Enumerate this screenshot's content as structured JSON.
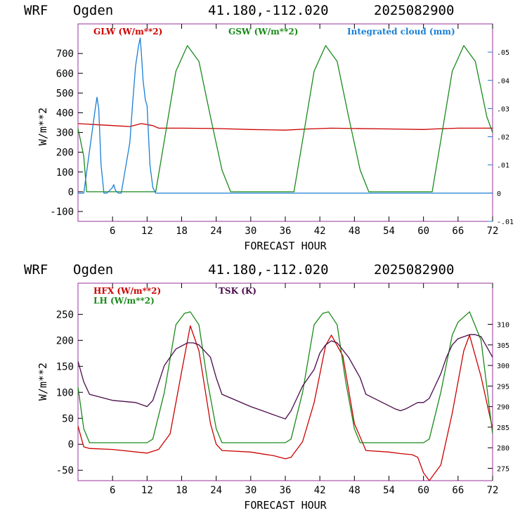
{
  "colors": {
    "red": "#cc0000",
    "green": "#1a8a1a",
    "blue": "#1a7fd4",
    "purple": "#4a0a4a",
    "frame": "#993399"
  },
  "chart_data": [
    {
      "type": "line",
      "header": {
        "model": "WRF",
        "station": "Ogden",
        "coords": "41.180,-112.020",
        "run": "2025082900"
      },
      "xlabel": "FORECAST HOUR",
      "ylabel": "W/m**2",
      "xlim": [
        0,
        72
      ],
      "ylim": [
        -150,
        850
      ],
      "y2lim": [
        -0.01,
        0.06
      ],
      "x_ticks": [
        6,
        12,
        18,
        24,
        30,
        36,
        42,
        48,
        54,
        60,
        66,
        72
      ],
      "x_tick_labels": [
        "6",
        "12",
        "18",
        "24",
        "30",
        "36",
        "42",
        "48",
        "54",
        "60",
        "66",
        "72"
      ],
      "y_ticks": [
        -100,
        0,
        100,
        200,
        300,
        400,
        500,
        600,
        700
      ],
      "y_tick_labels": [
        "-100",
        "0",
        "100",
        "200",
        "300",
        "400",
        "500",
        "600",
        "700"
      ],
      "y2_ticks": [
        -0.01,
        0,
        0.01,
        0.02,
        0.03,
        0.04,
        0.05
      ],
      "y2_tick_labels": [
        "-.01",
        "0",
        ".01",
        ".02",
        ".03",
        ".04",
        ".05"
      ],
      "series": [
        {
          "name": "GLW (W/m**2)",
          "axis": "left",
          "color": "#cc0000",
          "x": [
            0,
            3,
            6,
            9,
            11,
            13,
            14,
            18,
            24,
            30,
            36,
            40,
            44,
            48,
            54,
            60,
            62,
            66,
            72
          ],
          "y": [
            345,
            340,
            335,
            330,
            345,
            335,
            322,
            322,
            320,
            315,
            312,
            318,
            322,
            320,
            318,
            315,
            318,
            322,
            322
          ]
        },
        {
          "name": "GSW (W/m**2)",
          "axis": "left",
          "color": "#1a8a1a",
          "x": [
            0,
            1,
            1.5,
            13.5,
            15,
            17,
            19,
            21,
            23,
            25,
            26.5,
            37.5,
            39,
            41,
            43,
            45,
            47,
            49,
            50.5,
            61.5,
            63,
            65,
            67,
            69,
            71,
            72
          ],
          "y": [
            320,
            180,
            0,
            0,
            260,
            610,
            740,
            660,
            380,
            110,
            0,
            0,
            260,
            610,
            740,
            660,
            380,
            110,
            0,
            0,
            260,
            610,
            740,
            660,
            380,
            300
          ]
        },
        {
          "name": "Integrated cloud (mm)",
          "axis": "right",
          "color": "#1a7fd4",
          "x": [
            0,
            1,
            2,
            3,
            3.3,
            3.6,
            4,
            4.5,
            5,
            6,
            6.2,
            6.5,
            7,
            7.5,
            8,
            9,
            9.5,
            10,
            10.5,
            10.8,
            11,
            11.3,
            11.7,
            12,
            12.5,
            13,
            13.5,
            14,
            72
          ],
          "y": [
            0,
            0,
            0.015,
            0.03,
            0.034,
            0.03,
            0.01,
            0,
            0,
            0.002,
            0.003,
            0.001,
            0,
            0,
            0.006,
            0.018,
            0.032,
            0.045,
            0.052,
            0.055,
            0.05,
            0.04,
            0.033,
            0.031,
            0.01,
            0.002,
            0,
            0,
            0
          ]
        }
      ]
    },
    {
      "type": "line",
      "header": {
        "model": "WRF",
        "station": "Ogden",
        "coords": "41.180,-112.020",
        "run": "2025082900"
      },
      "xlabel": "FORECAST HOUR",
      "ylabel": "W/m**2",
      "xlim": [
        0,
        72
      ],
      "ylim": [
        -70,
        310
      ],
      "y2lim": [
        272,
        320
      ],
      "x_ticks": [
        6,
        12,
        18,
        24,
        30,
        36,
        42,
        48,
        54,
        60,
        66,
        72
      ],
      "x_tick_labels": [
        "6",
        "12",
        "18",
        "24",
        "30",
        "36",
        "42",
        "48",
        "54",
        "60",
        "66",
        "72"
      ],
      "y_ticks": [
        -50,
        0,
        50,
        100,
        150,
        200,
        250
      ],
      "y_tick_labels": [
        "-50",
        "0",
        "50",
        "100",
        "150",
        "200",
        "250"
      ],
      "y2_ticks": [
        275,
        280,
        285,
        290,
        295,
        300,
        305,
        310
      ],
      "y2_tick_labels": [
        "275",
        "280",
        "285",
        "290",
        "295",
        "300",
        "305",
        "310"
      ],
      "series": [
        {
          "name": "HFX (W/m**2)",
          "axis": "left",
          "color": "#cc0000",
          "x": [
            0,
            1,
            2,
            6,
            12,
            14,
            16,
            18,
            19.5,
            21,
            23,
            24,
            25,
            30,
            34,
            36,
            37,
            39,
            41,
            43,
            44,
            46,
            48,
            50,
            54,
            56,
            58,
            59,
            60,
            61,
            63,
            65,
            67,
            68,
            70,
            72
          ],
          "y": [
            35,
            -5,
            -8,
            -10,
            -17,
            -10,
            20,
            140,
            228,
            180,
            40,
            0,
            -12,
            -15,
            -22,
            -28,
            -25,
            5,
            80,
            190,
            210,
            170,
            40,
            -12,
            -15,
            -18,
            -20,
            -25,
            -55,
            -70,
            -40,
            60,
            180,
            210,
            130,
            30
          ]
        },
        {
          "name": "LH  (W/m**2)",
          "axis": "left",
          "color": "#1a8a1a",
          "x": [
            0,
            1,
            2,
            12,
            13,
            15,
            17,
            18.5,
            19.5,
            21,
            22.5,
            24,
            25,
            36,
            37,
            39,
            41,
            42.5,
            43.5,
            45,
            46.5,
            48,
            49,
            60,
            61,
            63,
            65,
            66,
            68,
            70,
            72
          ],
          "y": [
            110,
            30,
            3,
            3,
            10,
            100,
            230,
            252,
            255,
            230,
            120,
            30,
            3,
            3,
            10,
            100,
            230,
            252,
            255,
            230,
            120,
            30,
            3,
            3,
            10,
            100,
            210,
            235,
            255,
            200,
            20
          ]
        },
        {
          "name": "TSK (K)",
          "axis": "right",
          "color": "#4a0a4a",
          "x": [
            0,
            1,
            2,
            6,
            10,
            12,
            13,
            15,
            17,
            19,
            20,
            21,
            23,
            24,
            25,
            30,
            36,
            37,
            39,
            41,
            42,
            43,
            44,
            45,
            47,
            49,
            50,
            55,
            56,
            57,
            59,
            60,
            61,
            63,
            64,
            65,
            66,
            68,
            69,
            70,
            72
          ],
          "y": [
            301,
            296,
            293,
            291.5,
            291,
            290,
            291.5,
            300,
            304,
            305.5,
            305.5,
            305,
            302,
            297,
            293,
            290,
            287,
            289,
            295,
            299,
            303,
            305,
            306,
            305.5,
            302,
            297,
            293,
            289.5,
            289,
            289.5,
            291,
            291,
            292,
            298,
            302,
            305,
            306.5,
            307.5,
            307.5,
            307,
            302
          ]
        }
      ]
    }
  ]
}
